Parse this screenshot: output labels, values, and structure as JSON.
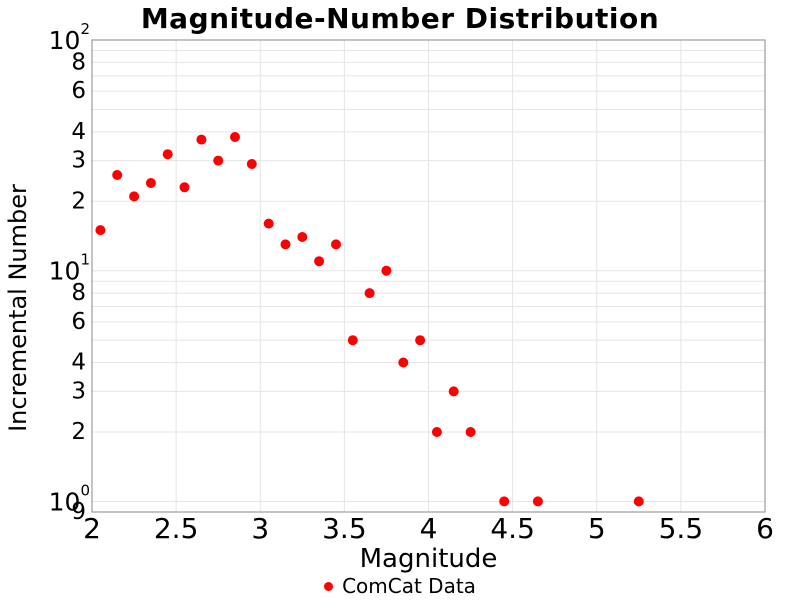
{
  "chart_data": {
    "type": "scatter",
    "title": "Magnitude-Number Distribution",
    "xlabel": "Magnitude",
    "ylabel": "Incremental Number",
    "grid": true,
    "legend_position": "bottom-center",
    "series": [
      {
        "name": "ComCat Data",
        "marker": "dot",
        "color": "#ff0000",
        "x": [
          2.05,
          2.15,
          2.25,
          2.35,
          2.45,
          2.55,
          2.65,
          2.75,
          2.85,
          2.95,
          3.05,
          3.15,
          3.25,
          3.35,
          3.45,
          3.55,
          3.65,
          3.75,
          3.85,
          3.95,
          4.05,
          4.15,
          4.25,
          4.45,
          4.65,
          5.25
        ],
        "y": [
          15,
          26,
          21,
          24,
          32,
          23,
          37,
          30,
          38,
          29,
          16,
          13,
          14,
          11,
          13,
          5,
          8,
          10,
          4,
          5,
          2,
          3,
          2,
          1,
          1,
          1
        ]
      }
    ],
    "x_axis": {
      "min": 2,
      "max": 6,
      "ticks": [
        2,
        2.5,
        3,
        3.5,
        4,
        4.5,
        5,
        5.5,
        6
      ],
      "tick_labels": [
        "2",
        "2.5",
        "3",
        "3.5",
        "4",
        "4.5",
        "5",
        "5.5",
        "6"
      ],
      "gridlines": [
        2.5,
        3,
        3.5,
        4,
        4.5,
        5,
        5.5
      ]
    },
    "y_axis": {
      "scale": "log",
      "min": 0.9,
      "max": 100,
      "major_ticks": [
        {
          "value": 100,
          "base": "10",
          "exponent": "2"
        },
        {
          "value": 10,
          "base": "10",
          "exponent": "1"
        },
        {
          "value": 1,
          "base": "10",
          "exponent": "0"
        }
      ],
      "minor_tick_labels": [
        {
          "value": 80,
          "label": "8"
        },
        {
          "value": 60,
          "label": "6"
        },
        {
          "value": 40,
          "label": "4"
        },
        {
          "value": 30,
          "label": "3"
        },
        {
          "value": 20,
          "label": "2"
        },
        {
          "value": 8,
          "label": "8"
        },
        {
          "value": 6,
          "label": "6"
        },
        {
          "value": 4,
          "label": "4"
        },
        {
          "value": 3,
          "label": "3"
        },
        {
          "value": 2,
          "label": "2"
        },
        {
          "value": 0.9,
          "label": "9"
        }
      ],
      "gridlines": [
        1,
        2,
        3,
        4,
        5,
        6,
        7,
        8,
        9,
        10,
        20,
        30,
        40,
        50,
        60,
        70,
        80,
        90
      ]
    },
    "colors": {
      "marker": "#ff0000",
      "gridline": "#e5e5e5",
      "border": "#a3a3a3",
      "text": "#000000",
      "background": "#ffffff"
    }
  }
}
